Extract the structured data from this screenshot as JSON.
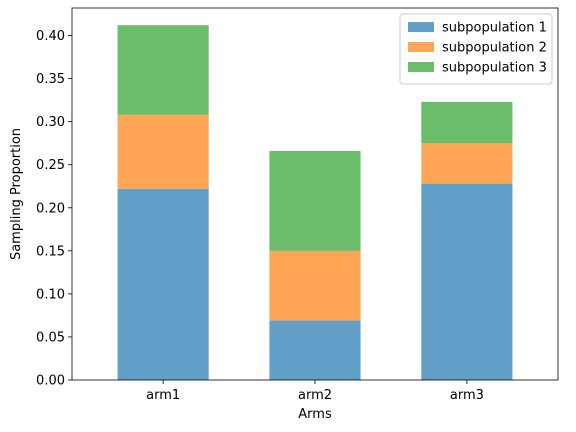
{
  "chart_data": {
    "type": "bar",
    "stacked": true,
    "categories": [
      "arm1",
      "arm2",
      "arm3"
    ],
    "series": [
      {
        "name": "subpopulation 1",
        "values": [
          0.222,
          0.069,
          0.228
        ],
        "color": "#1f77b4"
      },
      {
        "name": "subpopulation 2",
        "values": [
          0.086,
          0.081,
          0.047
        ],
        "color": "#ff7f0e"
      },
      {
        "name": "subpopulation 3",
        "values": [
          0.104,
          0.116,
          0.048
        ],
        "color": "#2ca02c"
      }
    ],
    "bar_opacity": 0.7,
    "title": "",
    "xlabel": "Arms",
    "ylabel": "Sampling Proportion",
    "ylim": [
      0,
      0.432
    ],
    "yticks": [
      0.0,
      0.05,
      0.1,
      0.15,
      0.2,
      0.25,
      0.3,
      0.35,
      0.4
    ],
    "ytick_labels": [
      "0.00",
      "0.05",
      "0.10",
      "0.15",
      "0.20",
      "0.25",
      "0.30",
      "0.35",
      "0.40"
    ],
    "grid": false,
    "legend_position": "top-right"
  }
}
